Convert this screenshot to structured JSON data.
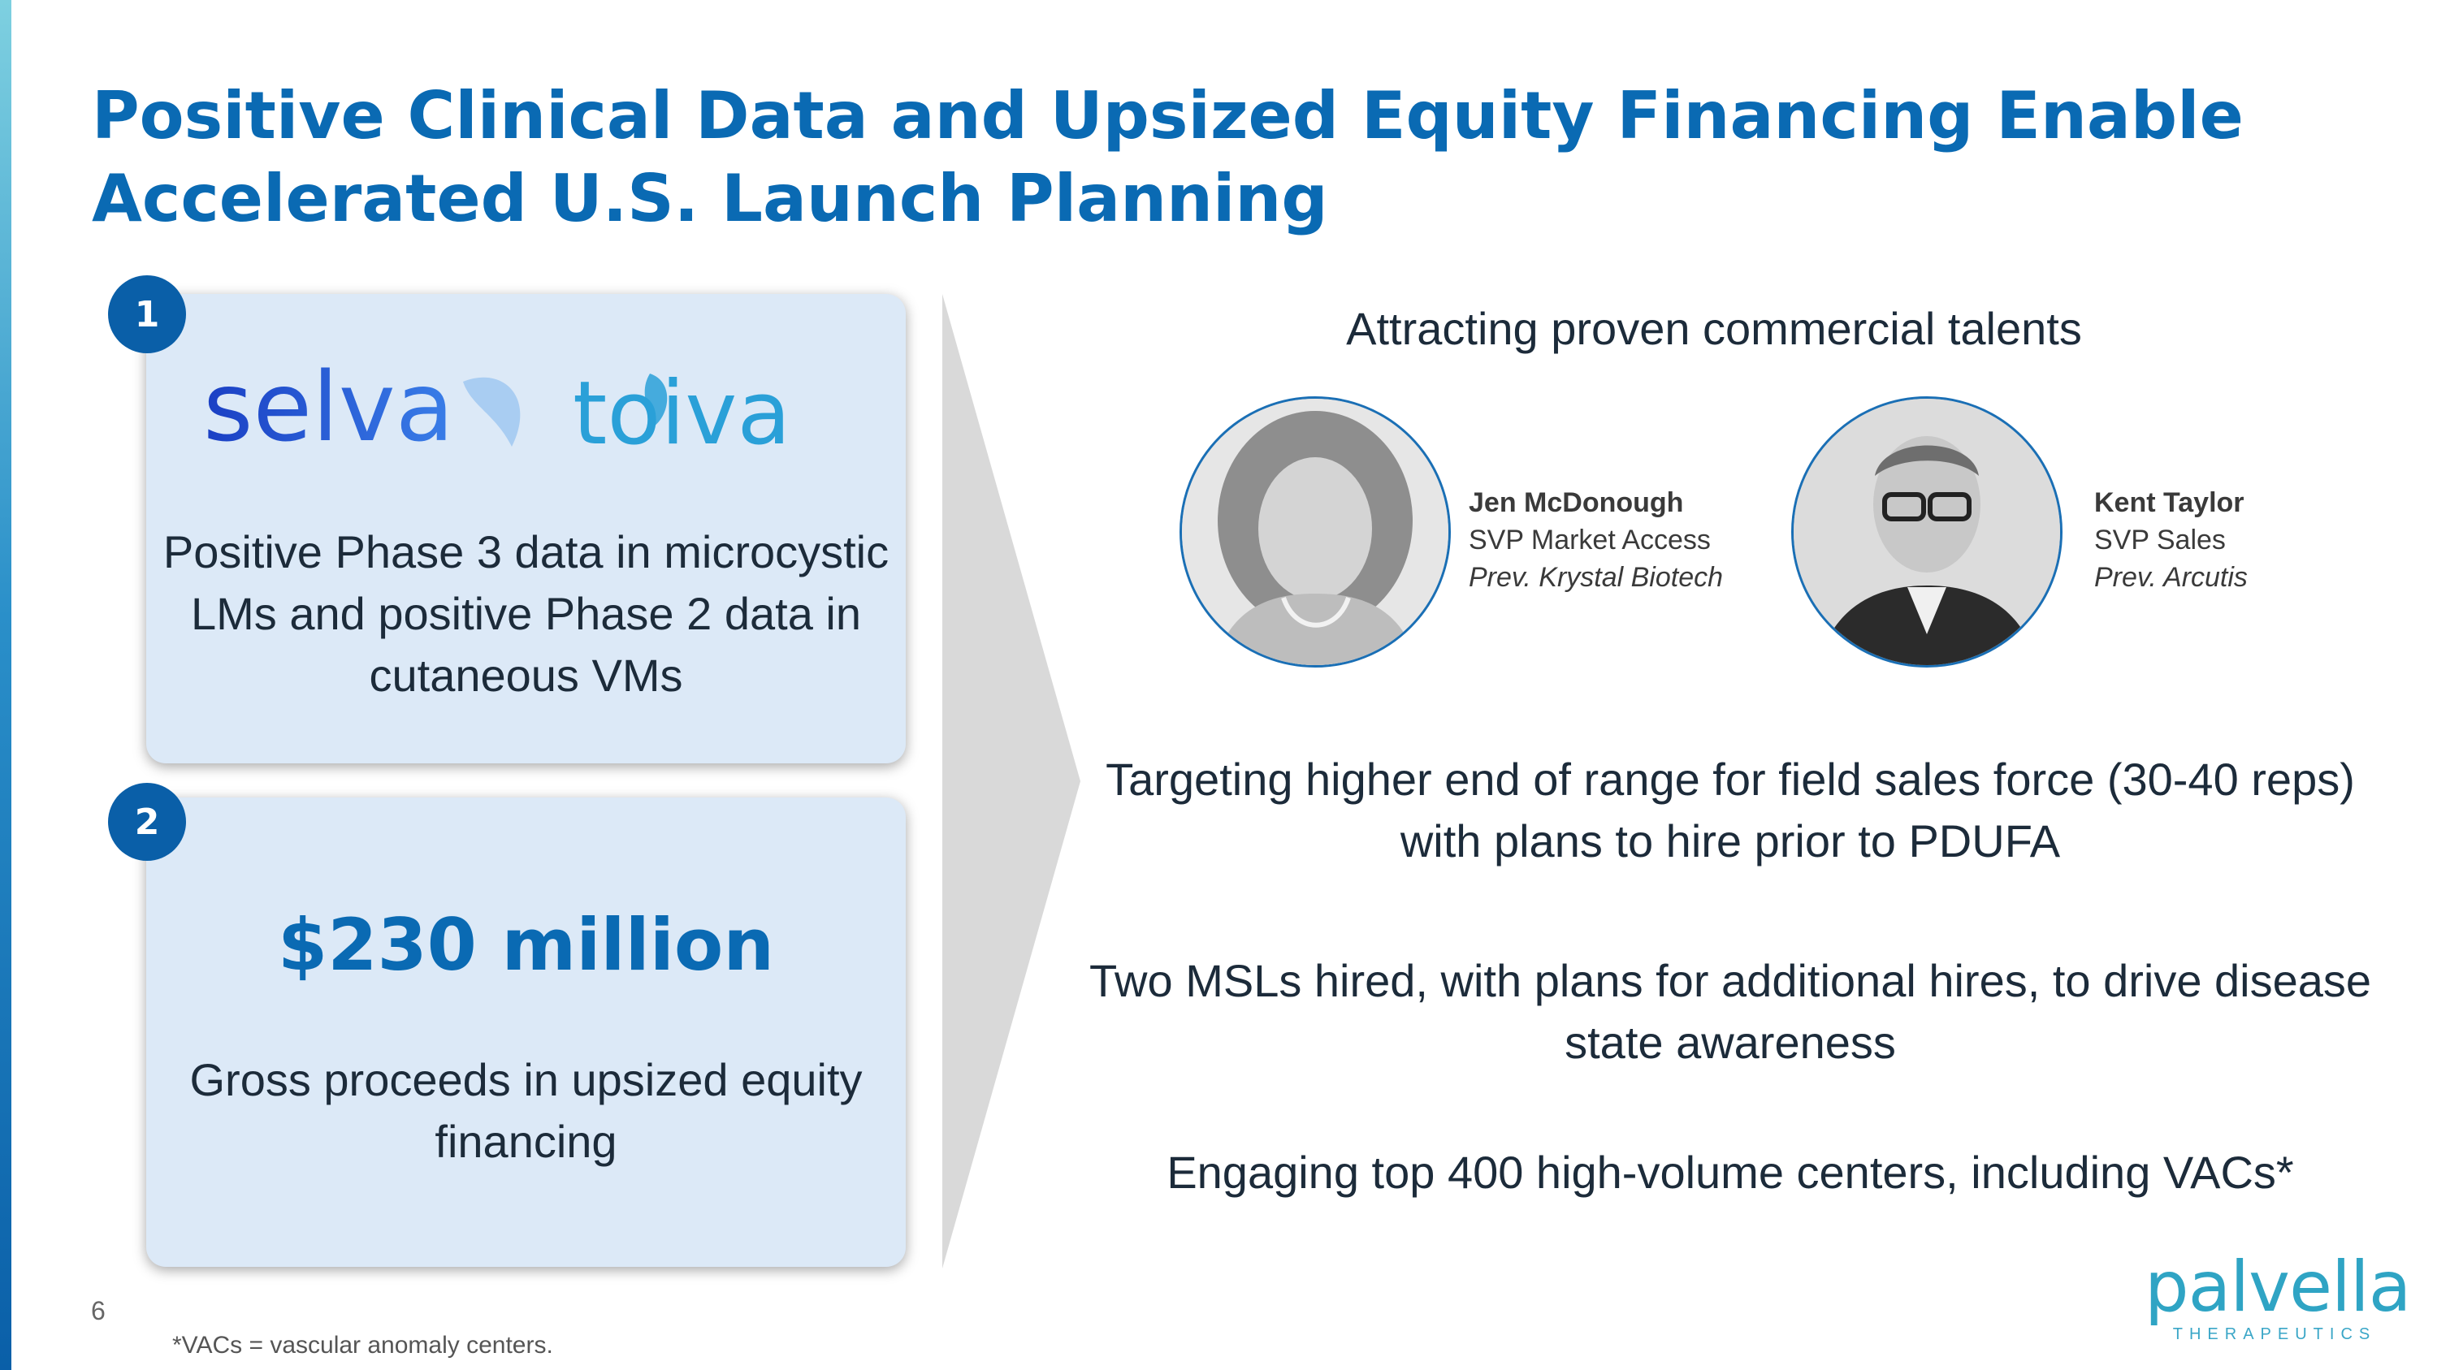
{
  "title": "Positive Clinical Data and Upsized Equity Financing Enable Accelerated U.S. Launch Planning",
  "card1": {
    "badge": "1",
    "logo_left": "selva",
    "logo_right": "toiva",
    "text": "Positive Phase 3 data in microcystic LMs and positive Phase 2 data in cutaneous VMs"
  },
  "card2": {
    "badge": "2",
    "value": "$230 million",
    "text": "Gross proceeds in upsized equity financing"
  },
  "right": {
    "subheading": "Attracting proven commercial talents",
    "people": [
      {
        "name": "Jen McDonough",
        "role": "SVP Market Access",
        "prev": "Prev. Krystal Biotech"
      },
      {
        "name": "Kent Taylor",
        "role": "SVP Sales",
        "prev": "Prev. Arcutis"
      }
    ],
    "bullets": [
      "Targeting higher end of range for field sales force (30-40 reps) with plans to hire prior to PDUFA",
      "Two MSLs hired, with plans for additional hires, to drive disease state awareness",
      "Engaging top 400 high-volume centers, including VACs*"
    ]
  },
  "footer": {
    "page_number": "6",
    "footnote": "*VACs = vascular anomaly centers.",
    "logo_name": "palvella",
    "logo_tagline": "THERAPEUTICS"
  },
  "colors": {
    "title": "#0a6ab3",
    "card_bg": "#dce9f7",
    "badge": "#0a5fa8",
    "selva_blue": "#1f4fd6",
    "toiva_cyan": "#2aa0d8",
    "palvella_teal": "#2fa4c4"
  }
}
